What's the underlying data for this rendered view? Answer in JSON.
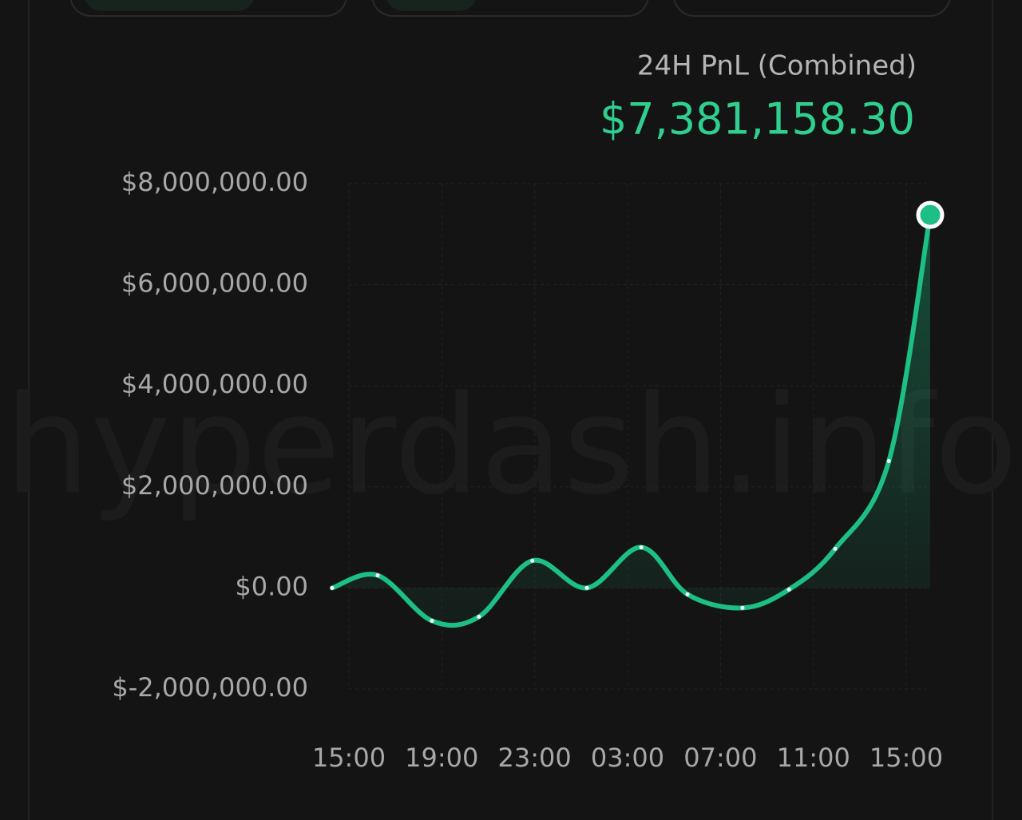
{
  "chart_data": {
    "type": "line",
    "title": "24H PnL (Combined)",
    "value_label": "$7,381,158.30",
    "watermark": "hyperdash.info",
    "x": [
      -0.72,
      1.24,
      3.58,
      5.6,
      7.9,
      10.25,
      12.59,
      14.58,
      16.95,
      18.95,
      20.94,
      23.25,
      25.03
    ],
    "series": [
      {
        "name": "PnL",
        "color": "#1dbf84",
        "values": [
          0,
          250000,
          -650000,
          -570000,
          540000,
          0,
          805000,
          -125000,
          -395000,
          -30000,
          775000,
          2510000,
          7381158.3
        ]
      }
    ],
    "xlim": [
      -0.72,
      25.03
    ],
    "xticks": [
      {
        "value": 0,
        "label": "15:00"
      },
      {
        "value": 4,
        "label": "19:00"
      },
      {
        "value": 8,
        "label": "23:00"
      },
      {
        "value": 12,
        "label": "03:00"
      },
      {
        "value": 16,
        "label": "07:00"
      },
      {
        "value": 20,
        "label": "11:00"
      },
      {
        "value": 24,
        "label": "15:00"
      }
    ],
    "ylim": [
      -2000000,
      8000000
    ],
    "yticks": [
      {
        "value": -2000000,
        "label": "$-2,000,000.00"
      },
      {
        "value": 0,
        "label": "$0.00"
      },
      {
        "value": 2000000,
        "label": "$2,000,000.00"
      },
      {
        "value": 4000000,
        "label": "$4,000,000.00"
      },
      {
        "value": 6000000,
        "label": "$6,000,000.00"
      },
      {
        "value": 8000000,
        "label": "$8,000,000.00"
      }
    ],
    "grid": true
  }
}
